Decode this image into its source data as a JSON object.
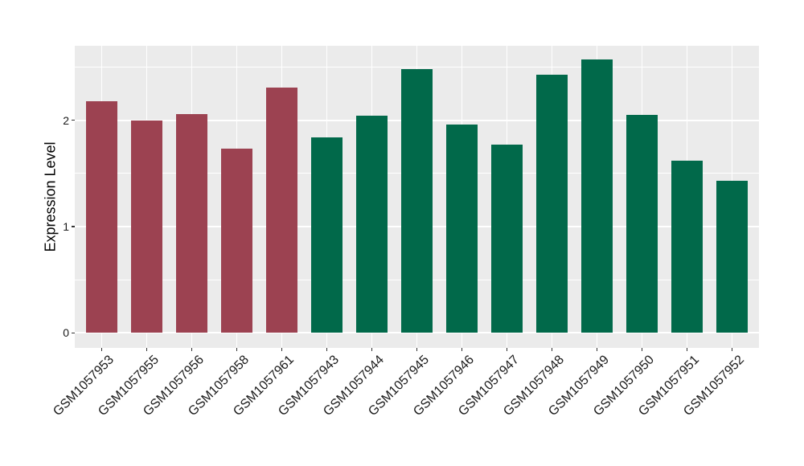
{
  "chart_data": {
    "type": "bar",
    "title": "",
    "xlabel": "",
    "ylabel": "Expression Level",
    "categories": [
      "GSM1057953",
      "GSM1057955",
      "GSM1057956",
      "GSM1057958",
      "GSM1057961",
      "GSM1057943",
      "GSM1057944",
      "GSM1057945",
      "GSM1057946",
      "GSM1057947",
      "GSM1057948",
      "GSM1057949",
      "GSM1057950",
      "GSM1057951",
      "GSM1057952"
    ],
    "values": [
      2.18,
      2.0,
      2.06,
      1.73,
      2.31,
      1.84,
      2.04,
      2.48,
      1.96,
      1.77,
      2.43,
      2.57,
      2.05,
      1.62,
      1.43
    ],
    "bar_colors": [
      "#9C4251",
      "#9C4251",
      "#9C4251",
      "#9C4251",
      "#9C4251",
      "#01694A",
      "#01694A",
      "#01694A",
      "#01694A",
      "#01694A",
      "#01694A",
      "#01694A",
      "#01694A",
      "#01694A",
      "#01694A"
    ],
    "group_colors": {
      "left_group": "#9C4251",
      "right_group": "#01694A"
    },
    "yticks": [
      "0",
      "1",
      "2"
    ],
    "ytick_values": [
      0,
      1,
      2
    ],
    "minor_ytick_values": [
      0.5,
      1.5,
      2.5
    ],
    "ylim": [
      -0.14,
      2.7
    ],
    "grid": "on",
    "legend": "none",
    "x_label_rotation_deg": 45,
    "bar_width_fraction": 0.7,
    "panel_background": "#EBEBEB",
    "grid_color": "#FFFFFF",
    "tick_color": "#333333",
    "axis_text_color": "#1A1A1A",
    "axis_title_color": "#000000",
    "figure_background": "#FFFFFF"
  }
}
